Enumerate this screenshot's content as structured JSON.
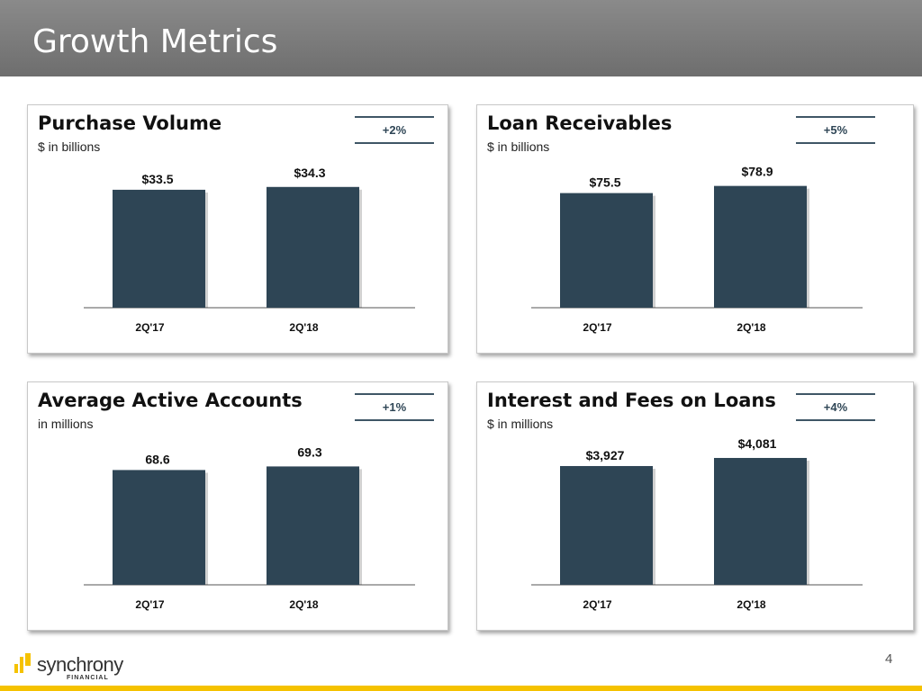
{
  "header": {
    "title": "Growth Metrics"
  },
  "chart_data": [
    {
      "type": "bar",
      "title": "Purchase Volume",
      "subtitle": "$ in billions",
      "change": "+2%",
      "categories": [
        "2Q'17",
        "2Q'18"
      ],
      "values": [
        33.5,
        34.3
      ],
      "labels": [
        "$33.5",
        "$34.3"
      ],
      "ylim": [
        0,
        46
      ]
    },
    {
      "type": "bar",
      "title": "Loan Receivables",
      "subtitle": "$ in billions",
      "change": "+5%",
      "categories": [
        "2Q'17",
        "2Q'18"
      ],
      "values": [
        75.5,
        78.9
      ],
      "labels": [
        "$75.5",
        "$78.9"
      ],
      "ylim": [
        21,
        98
      ]
    },
    {
      "type": "bar",
      "title": "Average Active Accounts",
      "subtitle": "in millions",
      "change": "+1%",
      "categories": [
        "2Q'17",
        "2Q'18"
      ],
      "values": [
        68.6,
        69.3
      ],
      "labels": [
        "68.6",
        "69.3"
      ],
      "ylim": [
        46.2,
        77.8
      ]
    },
    {
      "type": "bar",
      "title": "Interest and Fees on Loans",
      "subtitle": "$ in millions",
      "change": "+4%",
      "categories": [
        "2Q'17",
        "2Q'18"
      ],
      "values": [
        3927,
        4081
      ],
      "labels": [
        "$3,927",
        "$4,081"
      ],
      "ylim": [
        1668,
        4748
      ]
    }
  ],
  "colors": {
    "bar": "#2e4555",
    "accent": "#f5c200"
  },
  "footer": {
    "logo_text": "synchrony",
    "logo_sub": "FINANCIAL",
    "page_number": "4"
  }
}
